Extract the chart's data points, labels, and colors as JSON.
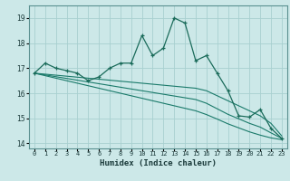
{
  "x": [
    0,
    1,
    2,
    3,
    4,
    5,
    6,
    7,
    8,
    9,
    10,
    11,
    12,
    13,
    14,
    15,
    16,
    17,
    18,
    19,
    20,
    21,
    22,
    23
  ],
  "y_main": [
    16.8,
    17.2,
    17.0,
    16.9,
    16.8,
    16.5,
    16.65,
    17.0,
    17.2,
    17.2,
    18.3,
    17.5,
    17.8,
    19.0,
    18.8,
    17.3,
    17.5,
    16.8,
    16.1,
    15.1,
    15.05,
    15.35,
    14.6,
    14.2
  ],
  "y_trend1": [
    16.8,
    16.76,
    16.72,
    16.68,
    16.64,
    16.6,
    16.56,
    16.52,
    16.48,
    16.44,
    16.4,
    16.36,
    16.32,
    16.28,
    16.24,
    16.2,
    16.1,
    15.9,
    15.7,
    15.5,
    15.3,
    15.1,
    14.8,
    14.3
  ],
  "y_trend2": [
    16.8,
    16.73,
    16.66,
    16.59,
    16.52,
    16.45,
    16.38,
    16.31,
    16.24,
    16.17,
    16.1,
    16.03,
    15.96,
    15.89,
    15.82,
    15.75,
    15.6,
    15.38,
    15.16,
    14.98,
    14.8,
    14.65,
    14.42,
    14.2
  ],
  "y_trend3": [
    16.8,
    16.7,
    16.6,
    16.5,
    16.4,
    16.3,
    16.2,
    16.1,
    16.0,
    15.9,
    15.8,
    15.7,
    15.6,
    15.5,
    15.4,
    15.3,
    15.15,
    14.97,
    14.78,
    14.62,
    14.46,
    14.33,
    14.22,
    14.15
  ],
  "color_main": "#1a6b5a",
  "color_trend": "#1a7a6a",
  "bg_color": "#cce8e8",
  "grid_color": "#a8d0d0",
  "xlabel": "Humidex (Indice chaleur)",
  "ylim": [
    13.8,
    19.5
  ],
  "xlim": [
    -0.5,
    23.5
  ],
  "yticks": [
    14,
    15,
    16,
    17,
    18,
    19
  ],
  "xtick_labels": [
    "0",
    "1",
    "2",
    "3",
    "4",
    "5",
    "6",
    "7",
    "8",
    "9",
    "10",
    "11",
    "12",
    "13",
    "14",
    "15",
    "16",
    "17",
    "18",
    "19",
    "20",
    "21",
    "22",
    "23"
  ]
}
